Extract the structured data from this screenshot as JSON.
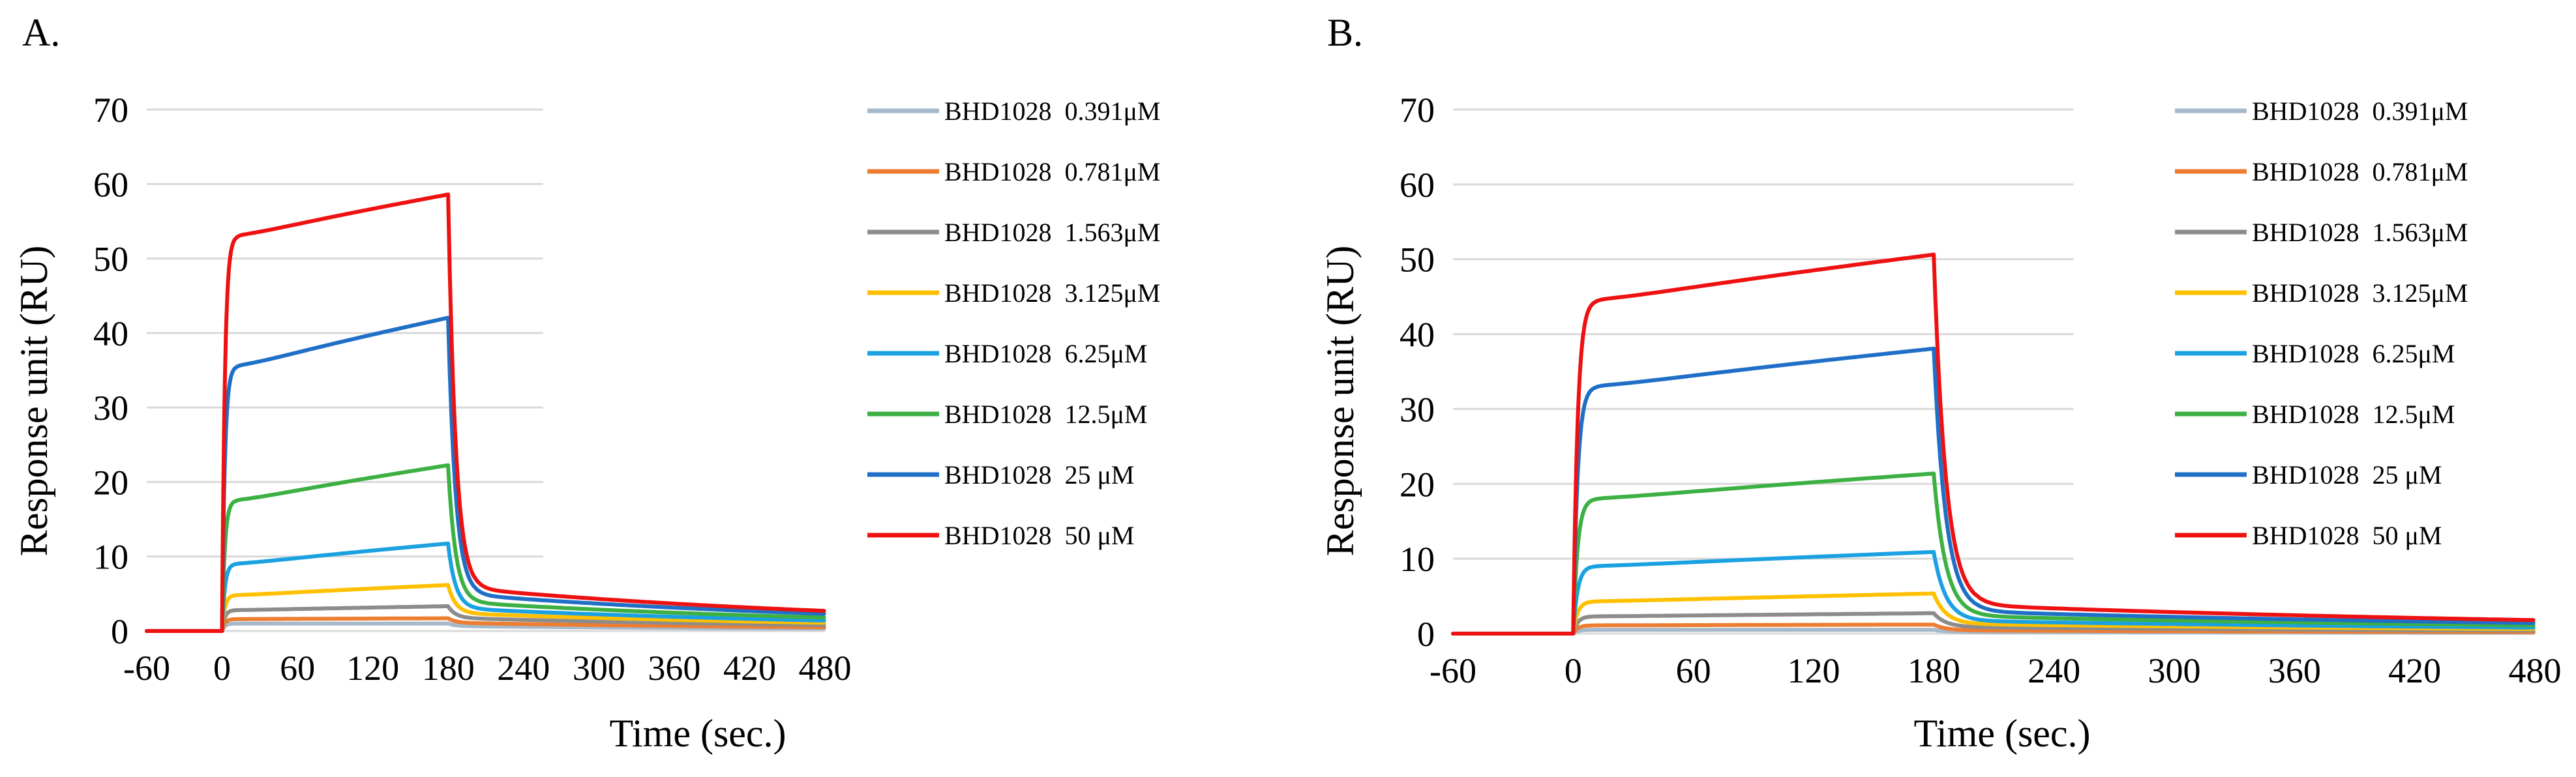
{
  "chart_data": [
    {
      "panel": "A.",
      "type": "line",
      "xlabel": "Time (sec.)",
      "ylabel": "Response unit (RU)",
      "xlim": [
        -60,
        480
      ],
      "ylim": [
        0,
        70
      ],
      "xticks": [
        "-60",
        "0",
        "60",
        "120",
        "180",
        "240",
        "300",
        "360",
        "420",
        "480"
      ],
      "yticks": [
        "0",
        "10",
        "20",
        "30",
        "40",
        "50",
        "60",
        "70"
      ],
      "grid": "horizontal",
      "legend": "right",
      "injection_start": 0,
      "injection_end": 180,
      "series": [
        {
          "name": "BHD1028  0.391μM",
          "color": "#a5b9cb",
          "plateau": 1.0,
          "end_assoc": 1.0,
          "end_value": 0.3
        },
        {
          "name": "BHD1028  0.781μM",
          "color": "#ed7d31",
          "plateau": 1.6,
          "end_assoc": 1.7,
          "end_value": 0.5
        },
        {
          "name": "BHD1028  1.563μM",
          "color": "#8c8c8c",
          "plateau": 2.8,
          "end_assoc": 3.3,
          "end_value": 0.8
        },
        {
          "name": "BHD1028  3.125μM",
          "color": "#ffc000",
          "plateau": 4.8,
          "end_assoc": 6.1,
          "end_value": 1.1
        },
        {
          "name": "BHD1028  6.25μM",
          "color": "#1ba1e2",
          "plateau": 9.0,
          "end_assoc": 11.6,
          "end_value": 1.4
        },
        {
          "name": "BHD1028  12.5μM",
          "color": "#3cb043",
          "plateau": 17.5,
          "end_assoc": 22.0,
          "end_value": 1.8
        },
        {
          "name": "BHD1028  25 μM",
          "color": "#1f6fc7",
          "plateau": 35.5,
          "end_assoc": 41.7,
          "end_value": 2.3
        },
        {
          "name": "BHD1028  50 μM",
          "color": "#ee1111",
          "plateau": 53.0,
          "end_assoc": 58.3,
          "end_value": 2.7
        }
      ]
    },
    {
      "panel": "B.",
      "type": "line",
      "xlabel": "Time (sec.)",
      "ylabel": "Response unit (RU)",
      "xlim": [
        -60,
        480
      ],
      "ylim": [
        0,
        70
      ],
      "xticks": [
        "-60",
        "0",
        "60",
        "120",
        "180",
        "240",
        "300",
        "360",
        "420",
        "480"
      ],
      "yticks": [
        "0",
        "10",
        "20",
        "30",
        "40",
        "50",
        "60",
        "70"
      ],
      "grid": "horizontal",
      "legend": "right",
      "injection_start": 0,
      "injection_end": 180,
      "series": [
        {
          "name": "BHD1028  0.391μM",
          "color": "#a5b9cb",
          "plateau": 0.5,
          "end_assoc": 0.5,
          "end_value": 0.1
        },
        {
          "name": "BHD1028  0.781μM",
          "color": "#ed7d31",
          "plateau": 1.1,
          "end_assoc": 1.2,
          "end_value": 0.2
        },
        {
          "name": "BHD1028  1.563μM",
          "color": "#8c8c8c",
          "plateau": 2.3,
          "end_assoc": 2.7,
          "end_value": 0.4
        },
        {
          "name": "BHD1028  3.125μM",
          "color": "#ffc000",
          "plateau": 4.3,
          "end_assoc": 5.3,
          "end_value": 0.6
        },
        {
          "name": "BHD1028  6.25μM",
          "color": "#1ba1e2",
          "plateau": 9.0,
          "end_assoc": 10.8,
          "end_value": 0.8
        },
        {
          "name": "BHD1028  12.5μM",
          "color": "#3cb043",
          "plateau": 18.0,
          "end_assoc": 21.2,
          "end_value": 1.1
        },
        {
          "name": "BHD1028  25 μM",
          "color": "#1f6fc7",
          "plateau": 33.0,
          "end_assoc": 37.8,
          "end_value": 1.4
        },
        {
          "name": "BHD1028  50 μM",
          "color": "#ee1111",
          "plateau": 44.5,
          "end_assoc": 50.3,
          "end_value": 1.8
        }
      ]
    }
  ]
}
